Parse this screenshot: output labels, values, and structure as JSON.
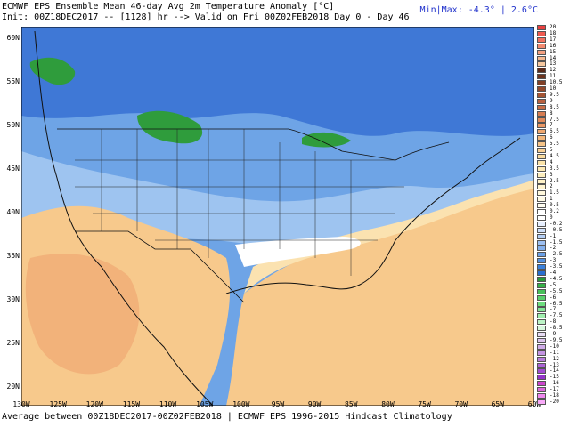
{
  "header": {
    "title": "ECMWF EPS Ensemble Mean 46-day Avg 2m Temperature Anomaly [°C]",
    "init": "Init: 00Z18DEC2017 -- [1128] hr --> Valid on Fri 00Z02FEB2018  Day 0 - Day 46",
    "minmax": "Min|Max: -4.3° | 2.6°C"
  },
  "footer": "Average between 00Z18DEC2017-00Z02FEB2018 | ECMWF EPS 1996-2015 Hindcast Climatology",
  "latitudes": [
    "60N",
    "55N",
    "50N",
    "45N",
    "40N",
    "35N",
    "30N",
    "25N",
    "20N"
  ],
  "longitudes": [
    "130W",
    "125W",
    "120W",
    "115W",
    "110W",
    "105W",
    "100W",
    "95W",
    "90W",
    "85W",
    "80W",
    "75W",
    "70W",
    "65W",
    "60W"
  ],
  "colorbar": {
    "labels": [
      "20",
      "18",
      "17",
      "16",
      "15",
      "14",
      "13",
      "12",
      "11",
      "10.5",
      "10",
      "9.5",
      "9",
      "8.5",
      "8",
      "7.5",
      "7",
      "6.5",
      "6",
      "5.5",
      "5",
      "4.5",
      "4",
      "3.5",
      "3",
      "2.5",
      "2",
      "1.5",
      "1",
      "0.5",
      "0.2",
      "0",
      "-0.2",
      "-0.5",
      "-1",
      "-1.5",
      "-2",
      "-2.5",
      "-3",
      "-3.5",
      "-4",
      "-4.5",
      "-5",
      "-5.5",
      "-6",
      "-6.5",
      "-7",
      "-7.5",
      "-8",
      "-8.5",
      "-9",
      "-9.5",
      "-10",
      "-11",
      "-12",
      "-13",
      "-14",
      "-15",
      "-16",
      "-17",
      "-18",
      "-20"
    ],
    "colors": [
      "#e84040",
      "#ee5a50",
      "#f07060",
      "#f28a70",
      "#f3a080",
      "#f4b890",
      "#f5c8a0",
      "#5a2a1a",
      "#6e3520",
      "#804028",
      "#934a2e",
      "#a55535",
      "#b86040",
      "#c86e48",
      "#d67c52",
      "#e08a5c",
      "#ea9866",
      "#f0a870",
      "#f4b87c",
      "#f6c488",
      "#f8d094",
      "#fadca0",
      "#fbe4aa",
      "#fce9b4",
      "#fdeebe",
      "#fef2c8",
      "#fff5d2",
      "#fff8dc",
      "#fffbe6",
      "#fffdf0",
      "#ffffff",
      "#ffffff",
      "#e8f0ff",
      "#cfe0fb",
      "#b6d0f6",
      "#9dc0f1",
      "#84b0ec",
      "#6ba0e6",
      "#5390e0",
      "#3b80da",
      "#2a6ecf",
      "#2a9a3a",
      "#36b048",
      "#48c05a",
      "#5ad06c",
      "#6ede80",
      "#84e696",
      "#a0eeae",
      "#bcf4c6",
      "#d8f8de",
      "#e8dcf4",
      "#dcc4ee",
      "#d0ace8",
      "#c494e2",
      "#b87cdc",
      "#ac64d6",
      "#a04cd0",
      "#9434ca",
      "#cc44cc",
      "#dd66dd",
      "#ee88ee",
      "#f8aaf8"
    ]
  },
  "map_colors": {
    "warm_light": "#fbe2b0",
    "warm_mid": "#f7c98c",
    "warm_strong": "#f2b27a",
    "cold_light": "#9ec4f0",
    "cold_mid": "#6ea4e6",
    "cold_strong": "#3f78d6",
    "cold_extreme": "#2f9c3c",
    "neutral": "#ffffff"
  }
}
